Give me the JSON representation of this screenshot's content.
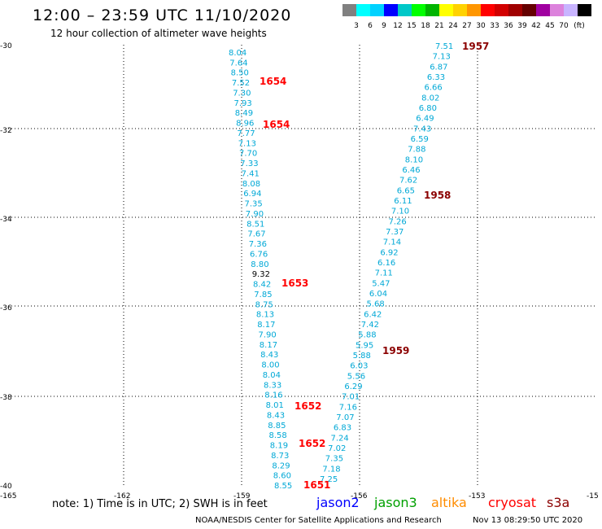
{
  "header": {
    "title": "12:00 – 23:59 UTC 11/10/2020",
    "subtitle": "12 hour collection of altimeter wave heights"
  },
  "color_scale": {
    "colors": [
      "#808080",
      "#00ffff",
      "#00d2ff",
      "#0000ff",
      "#00c8c8",
      "#00ff00",
      "#00b400",
      "#ffff00",
      "#ffd200",
      "#ff9600",
      "#ff0000",
      "#d20000",
      "#a00000",
      "#640000",
      "#a000a0",
      "#dc82dc",
      "#c8b4ff",
      "#000000"
    ],
    "labels": [
      "3",
      "6",
      "9",
      "12",
      "15",
      "18",
      "21",
      "24",
      "27",
      "30",
      "33",
      "36",
      "39",
      "42",
      "45",
      "70"
    ],
    "unit": "(ft)"
  },
  "axes": {
    "x_ticks": [
      "-165",
      "-162",
      "-159",
      "-156",
      "-153",
      "-15"
    ],
    "y_ticks": [
      "-30",
      "-32",
      "-34",
      "-36",
      "-38",
      "-40"
    ]
  },
  "left_track": {
    "values": [
      "8.04",
      "7.64",
      "8.50",
      "7.52",
      "7.30",
      "7.93",
      "8.49",
      "8.96",
      "7.77",
      "7.13",
      "7.70",
      "7.33",
      "7.41",
      "8.08",
      "6.94",
      "7.35",
      "7.90",
      "8.51",
      "7.67",
      "7.36",
      "6.76",
      "8.80",
      "9.32",
      "8.42",
      "7.85",
      "8.75",
      "8.13",
      "8.17",
      "7.90",
      "8.17",
      "8.43",
      "8.00",
      "8.04",
      "8.33",
      "8.16",
      "8.01",
      "8.43",
      "8.85",
      "8.58",
      "8.19",
      "8.73",
      "8.29",
      "8.60",
      "8.55"
    ]
  },
  "right_track": {
    "values": [
      "7.51",
      "7.13",
      "6.87",
      "6.33",
      "6.66",
      "8.02",
      "6.80",
      "6.49",
      "7.43",
      "6.59",
      "7.88",
      "8.10",
      "6.46",
      "7.62",
      "6.65",
      "6.11",
      "7.10",
      "7.26",
      "7.37",
      "7.14",
      "6.92",
      "6.16",
      "7.11",
      "5.47",
      "6.04",
      "5.68",
      "6.42",
      "7.42",
      "5.88",
      "5.95",
      "5.88",
      "6.03",
      "5.56",
      "6.29",
      "7.01",
      "7.16",
      "7.07",
      "6.83",
      "7.24",
      "7.02",
      "7.35",
      "7.18",
      "7.25"
    ]
  },
  "time_labels": [
    {
      "text": "1957",
      "color": "#8b0000"
    },
    {
      "text": "1654",
      "color": "#ff0000"
    },
    {
      "text": "1654",
      "color": "#ff0000"
    },
    {
      "text": "1958",
      "color": "#8b0000"
    },
    {
      "text": "1653",
      "color": "#ff0000"
    },
    {
      "text": "1959",
      "color": "#8b0000"
    },
    {
      "text": "1652",
      "color": "#ff0000"
    },
    {
      "text": "1652",
      "color": "#ff0000"
    },
    {
      "text": "1651",
      "color": "#ff0000"
    }
  ],
  "footer": {
    "note": "note: 1) Time is in UTC; 2) SWH is in feet",
    "credit": "NOAA/NESDIS Center for Satellite Applications and Research",
    "timestamp": "Nov 13 08:29:50 UTC 2020"
  },
  "legend": [
    {
      "text": "jason2",
      "color": "#0000ff"
    },
    {
      "text": "jason3",
      "color": "#00a000"
    },
    {
      "text": "altika",
      "color": "#ff8c00"
    },
    {
      "text": "cryosat",
      "color": "#ff0000"
    },
    {
      "text": "s3a",
      "color": "#8b0000"
    }
  ]
}
